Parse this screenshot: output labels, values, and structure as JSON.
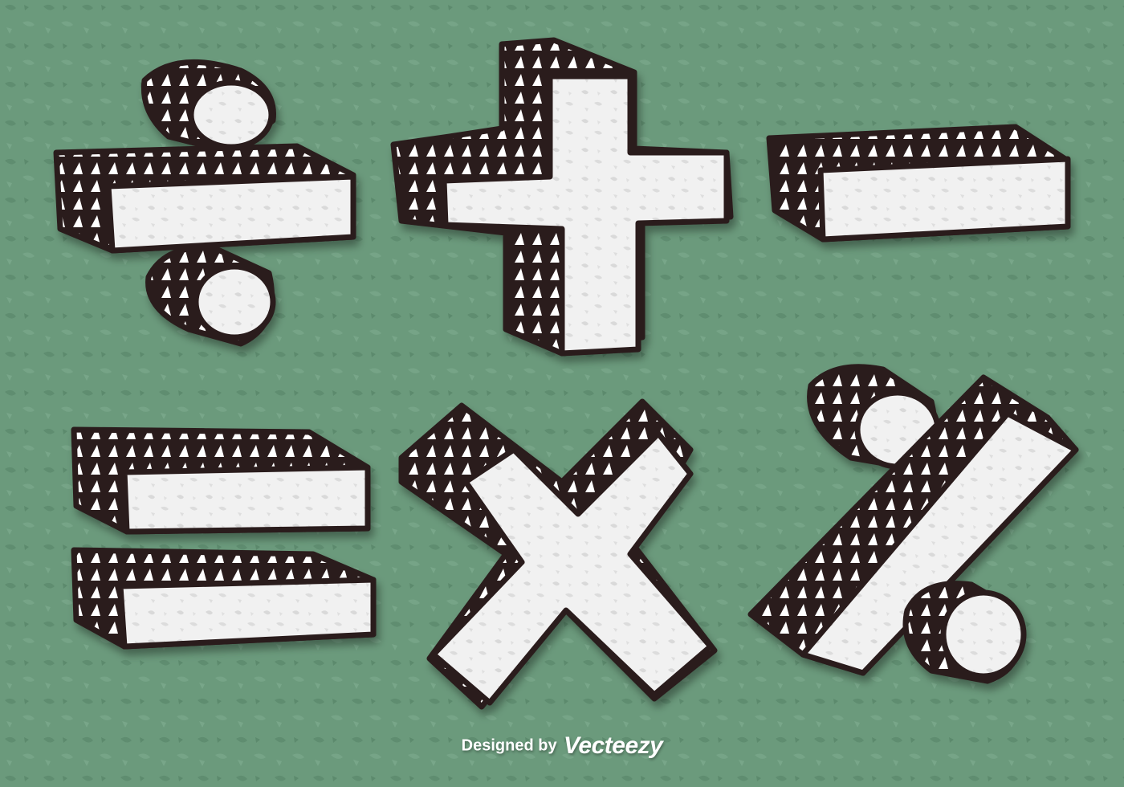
{
  "colors": {
    "background": "#6b9a7c",
    "ink": "#2a1c1c",
    "paper": "#f1f1f1"
  },
  "symbols": [
    {
      "name": "divide"
    },
    {
      "name": "plus"
    },
    {
      "name": "minus"
    },
    {
      "name": "equals"
    },
    {
      "name": "multiply"
    },
    {
      "name": "percent"
    }
  ],
  "credit": {
    "prefix": "Designed by",
    "brand": "Vecteezy"
  }
}
